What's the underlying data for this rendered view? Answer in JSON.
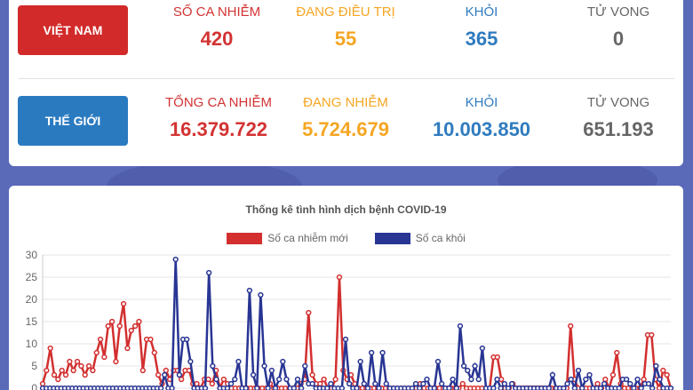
{
  "vietnam": {
    "region_label": "VIỆT NAM",
    "stats": [
      {
        "label": "SỐ CA NHIỄM",
        "value": "420"
      },
      {
        "label": "ĐANG ĐIỀU TRỊ",
        "value": "55"
      },
      {
        "label": "KHỎI",
        "value": "365"
      },
      {
        "label": "TỬ VONG",
        "value": "0"
      }
    ]
  },
  "world": {
    "region_label": "THẾ GIỚI",
    "stats": [
      {
        "label": "TỔNG CA NHIỄM",
        "value": "16.379.722"
      },
      {
        "label": "ĐANG NHIỄM",
        "value": "5.724.679"
      },
      {
        "label": "KHỎI",
        "value": "10.003.850"
      },
      {
        "label": "TỬ VONG",
        "value": "651.193"
      }
    ]
  },
  "colors": {
    "infected": "#d33333",
    "treating": "#f5a623",
    "recovered": "#2f7bbf",
    "deaths": "#666666",
    "series_new": "#d32f2f",
    "series_recovered": "#283593"
  },
  "chart_data": {
    "type": "line",
    "title": "Thống kê tình hình dịch bệnh COVID-19",
    "ylim": [
      0,
      30
    ],
    "yticks": [
      "0",
      "5",
      "10",
      "15",
      "20",
      "25",
      "30"
    ],
    "legend_position": "top",
    "grid": true,
    "series": [
      {
        "name": "Số ca nhiễm mới",
        "color": "#d32f2f",
        "values": [
          1,
          4,
          9,
          3,
          2,
          4,
          3,
          6,
          4,
          6,
          5,
          3,
          5,
          4,
          8,
          11,
          7,
          14,
          15,
          6,
          14,
          19,
          9,
          13,
          14,
          15,
          4,
          11,
          11,
          8,
          3,
          1,
          4,
          2,
          4,
          4,
          2,
          4,
          4,
          1,
          1,
          0,
          2,
          2,
          1,
          4,
          0,
          2,
          1,
          0,
          0,
          0,
          0,
          0,
          0,
          0,
          0,
          0,
          0,
          1,
          0,
          0,
          0,
          0,
          0,
          0,
          0,
          1,
          2,
          17,
          3,
          1,
          1,
          2,
          0,
          0,
          2,
          25,
          4,
          2,
          3,
          1,
          0,
          0,
          0,
          0,
          0,
          0,
          0,
          0,
          0,
          0,
          0,
          0,
          0,
          0,
          0,
          0,
          1,
          0,
          0,
          0,
          0,
          0,
          0,
          0,
          0,
          0,
          0,
          1,
          0,
          0,
          0,
          0,
          0,
          0,
          0,
          7,
          7,
          2,
          0,
          0,
          1,
          0,
          0,
          0,
          0,
          0,
          0,
          0,
          0,
          0,
          0,
          0,
          0,
          0,
          0,
          14,
          2,
          0,
          0,
          0,
          0,
          0,
          1,
          0,
          2,
          0,
          3,
          8,
          1,
          0,
          0,
          0,
          0,
          0,
          2,
          12,
          12,
          2,
          0,
          4,
          3,
          0
        ]
      },
      {
        "name": "Số ca khỏi",
        "color": "#283593",
        "values": [
          0,
          0,
          0,
          0,
          0,
          0,
          0,
          0,
          0,
          0,
          0,
          0,
          0,
          0,
          0,
          0,
          0,
          0,
          0,
          0,
          0,
          0,
          0,
          0,
          0,
          0,
          0,
          0,
          0,
          0,
          0,
          0,
          0,
          3,
          0,
          0,
          29,
          3,
          11,
          11,
          6,
          0,
          0,
          0,
          0,
          26,
          5,
          2,
          0,
          0,
          0,
          1,
          2,
          6,
          0,
          0,
          22,
          3,
          0,
          21,
          5,
          0,
          4,
          0,
          2,
          6,
          2,
          0,
          0,
          2,
          0,
          5,
          1,
          1,
          0,
          0,
          0,
          0,
          1,
          0,
          0,
          0,
          11,
          1,
          0,
          0,
          6,
          1,
          0,
          8,
          1,
          0,
          8,
          1,
          0,
          0,
          0,
          0,
          0,
          0,
          0,
          1,
          0,
          1,
          2,
          0,
          0,
          6,
          1,
          0,
          0,
          2,
          0,
          14,
          5,
          4,
          2,
          5,
          2,
          9,
          0,
          0,
          0,
          2,
          0,
          1,
          0,
          1,
          0,
          0,
          0,
          0,
          0,
          0,
          0,
          0,
          0,
          0,
          3,
          0,
          0,
          0,
          1,
          2,
          0,
          4,
          0,
          2,
          3,
          0,
          0,
          0,
          1,
          0,
          0,
          0,
          0,
          2,
          2,
          1,
          0,
          2,
          0,
          1,
          1,
          0,
          5,
          2,
          0,
          0,
          0
        ]
      }
    ]
  }
}
